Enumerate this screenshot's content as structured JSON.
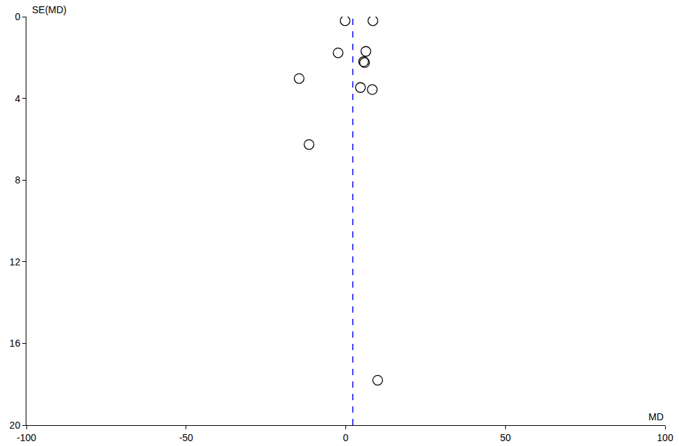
{
  "chart_data": {
    "type": "scatter",
    "x_label": "MD",
    "y_label": "SE(MD)",
    "x": [
      -0.2,
      8.5,
      -2.4,
      6.3,
      5.6,
      5.9,
      -14.6,
      4.6,
      8.3,
      -11.5,
      10.0
    ],
    "values": [
      0.2,
      0.2,
      1.77,
      1.7,
      2.2,
      2.25,
      3.03,
      3.47,
      3.57,
      6.26,
      17.8
    ],
    "marker": "circle-open",
    "color": "#000000",
    "reference_line": {
      "x": 2.2,
      "color": "#0000ff",
      "line_style": "dashed"
    },
    "xlim": [
      -100,
      100
    ],
    "xticks": [
      -100,
      -50,
      0,
      50,
      100
    ],
    "ylim": [
      20,
      0
    ],
    "yticks": [
      0,
      4,
      8,
      12,
      16,
      20
    ],
    "grid": false
  }
}
